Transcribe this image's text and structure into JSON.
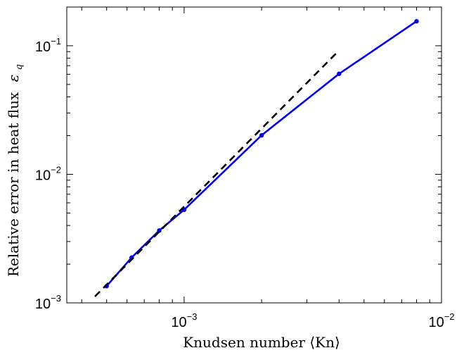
{
  "chart_data": {
    "type": "line",
    "title": "",
    "xlabel": "Knudsen number ⟨Kn⟩",
    "ylabel": "Relative error in heat flux",
    "ylabel_symbol": "ε",
    "ylabel_subscript": "q",
    "xscale": "log",
    "yscale": "log",
    "xlim": [
      0.00035,
      0.01
    ],
    "ylim": [
      0.001,
      0.2
    ],
    "grid": false,
    "legend": "none",
    "x_ticks": [
      {
        "value": 0.001,
        "base": "10",
        "exp": "−3"
      },
      {
        "value": 0.01,
        "base": "10",
        "exp": "−2"
      }
    ],
    "y_ticks": [
      {
        "value": 0.001,
        "base": "10",
        "exp": "−3"
      },
      {
        "value": 0.01,
        "base": "10",
        "exp": "−2"
      },
      {
        "value": 0.1,
        "base": "10",
        "exp": "−1"
      }
    ],
    "series": [
      {
        "style": "solid-markers",
        "color": "#0000ee",
        "x": [
          0.0005,
          0.000625,
          0.0008,
          0.001,
          0.002,
          0.004,
          0.008
        ],
        "y": [
          0.00135,
          0.00225,
          0.00365,
          0.0053,
          0.0201,
          0.0605,
          0.155
        ]
      },
      {
        "style": "dashed",
        "color": "#000000",
        "x": [
          0.00045,
          0.004
        ],
        "y": [
          0.00112,
          0.092
        ]
      }
    ]
  }
}
